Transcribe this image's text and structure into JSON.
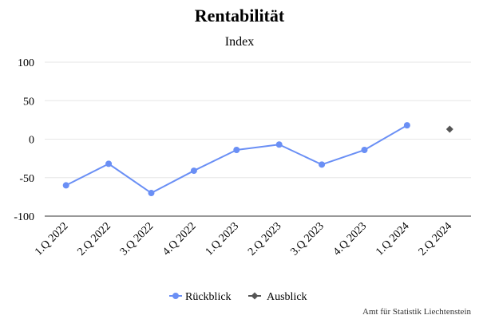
{
  "chart_data": {
    "type": "line",
    "title": "Rentabilität",
    "subtitle": "Index",
    "categories": [
      "1.Q 2022",
      "2.Q 2022",
      "3.Q 2022",
      "4.Q 2022",
      "1.Q 2023",
      "2.Q 2023",
      "3.Q 2023",
      "4.Q 2023",
      "1.Q 2024",
      "2.Q 2024"
    ],
    "ylim": [
      -100,
      100
    ],
    "yticks": [
      100,
      50,
      0,
      -50,
      -100
    ],
    "grid": true,
    "legend_position": "bottom-center",
    "series": [
      {
        "name": "Rückblick",
        "color": "#6a8ff5",
        "marker": "circle",
        "values": [
          -60,
          -32,
          -70,
          -41,
          -14,
          -7,
          -33,
          -14,
          18,
          null
        ]
      },
      {
        "name": "Ausblick",
        "color": "#555555",
        "marker": "diamond",
        "values": [
          null,
          null,
          null,
          null,
          null,
          null,
          null,
          null,
          null,
          13
        ]
      }
    ],
    "credit": "Amt für Statistik Liechtenstein"
  }
}
